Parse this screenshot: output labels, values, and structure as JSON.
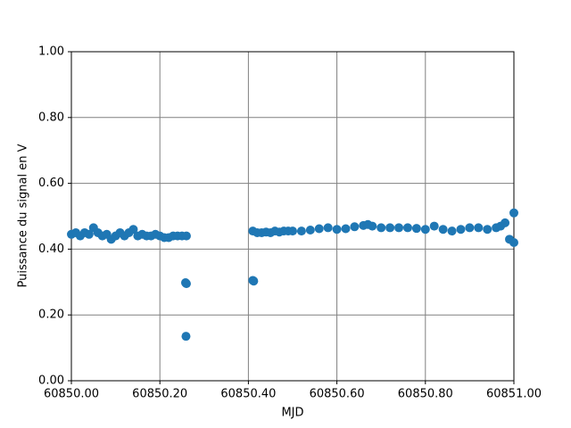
{
  "chart_data": {
    "type": "scatter",
    "xlabel": "MJD",
    "ylabel": "Puissance du signal en V",
    "color": "#1f77b4",
    "grid": true,
    "xlim": [
      60850.0,
      60851.0
    ],
    "ylim": [
      0.0,
      1.0
    ],
    "xticks": [
      {
        "value": 60850.0,
        "label": "60850.00"
      },
      {
        "value": 60850.2,
        "label": "60850.20"
      },
      {
        "value": 60850.4,
        "label": "60850.40"
      },
      {
        "value": 60850.6,
        "label": "60850.60"
      },
      {
        "value": 60850.8,
        "label": "60850.80"
      },
      {
        "value": 60851.0,
        "label": "60851.00"
      }
    ],
    "yticks": [
      {
        "value": 0.0,
        "label": "0.00"
      },
      {
        "value": 0.2,
        "label": "0.20"
      },
      {
        "value": 0.4,
        "label": "0.40"
      },
      {
        "value": 0.6,
        "label": "0.60"
      },
      {
        "value": 0.8,
        "label": "0.80"
      },
      {
        "value": 1.0,
        "label": "1.00"
      }
    ],
    "x": [
      60850.0,
      60850.01,
      60850.02,
      60850.03,
      60850.04,
      60850.05,
      60850.06,
      60850.07,
      60850.08,
      60850.09,
      60850.1,
      60850.11,
      60850.12,
      60850.13,
      60850.14,
      60850.15,
      60850.16,
      60850.17,
      60850.18,
      60850.19,
      60850.2,
      60850.21,
      60850.22,
      60850.23,
      60850.24,
      60850.25,
      60850.26,
      60850.258,
      60850.26,
      60850.259,
      60850.41,
      60850.412,
      60850.41,
      60850.42,
      60850.43,
      60850.44,
      60850.45,
      60850.46,
      60850.47,
      60850.48,
      60850.49,
      60850.5,
      60850.52,
      60850.54,
      60850.56,
      60850.58,
      60850.6,
      60850.62,
      60850.64,
      60850.66,
      60850.67,
      60850.68,
      60850.7,
      60850.72,
      60850.74,
      60850.76,
      60850.78,
      60850.8,
      60850.82,
      60850.84,
      60850.86,
      60850.88,
      60850.9,
      60850.92,
      60850.94,
      60850.96,
      60850.97,
      60850.98,
      60850.99,
      60851.0,
      60851.0
    ],
    "values": [
      0.445,
      0.45,
      0.44,
      0.45,
      0.445,
      0.465,
      0.45,
      0.44,
      0.445,
      0.43,
      0.44,
      0.45,
      0.44,
      0.45,
      0.46,
      0.44,
      0.445,
      0.44,
      0.44,
      0.445,
      0.44,
      0.435,
      0.435,
      0.44,
      0.44,
      0.44,
      0.44,
      0.298,
      0.295,
      0.135,
      0.305,
      0.303,
      0.455,
      0.45,
      0.45,
      0.452,
      0.45,
      0.455,
      0.452,
      0.455,
      0.455,
      0.455,
      0.455,
      0.458,
      0.462,
      0.465,
      0.46,
      0.462,
      0.468,
      0.472,
      0.475,
      0.47,
      0.465,
      0.465,
      0.465,
      0.465,
      0.463,
      0.46,
      0.47,
      0.46,
      0.455,
      0.46,
      0.465,
      0.465,
      0.46,
      0.465,
      0.47,
      0.48,
      0.43,
      0.51,
      0.42
    ]
  }
}
